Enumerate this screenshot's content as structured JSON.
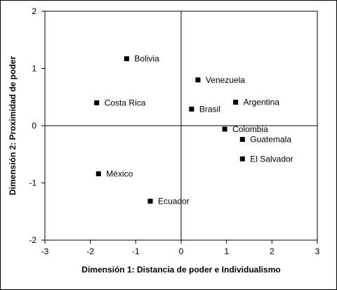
{
  "chart_data": {
    "type": "scatter",
    "xlabel": "Dimensión 1: Distancia de poder e Individualismo",
    "ylabel": "Dimensión 2: Proximidad de poder",
    "xlim": [
      -3,
      3
    ],
    "ylim": [
      -2,
      2
    ],
    "x_ticks": [
      "-3",
      "-2",
      "-1",
      "0",
      "1",
      "2",
      "3"
    ],
    "y_ticks": [
      "2",
      "1",
      "0",
      "-1",
      "-2"
    ],
    "grid": false,
    "reference_lines": {
      "x": 0,
      "y": 0
    },
    "points": [
      {
        "label": "Bolivia",
        "x": -1.2,
        "y": 1.17
      },
      {
        "label": "Venezuela",
        "x": 0.37,
        "y": 0.8
      },
      {
        "label": "Costa Rica",
        "x": -1.86,
        "y": 0.4
      },
      {
        "label": "Argentina",
        "x": 1.2,
        "y": 0.41
      },
      {
        "label": "Brasil",
        "x": 0.23,
        "y": 0.29
      },
      {
        "label": "Colombia",
        "x": 0.96,
        "y": -0.06
      },
      {
        "label": "Guatemala",
        "x": 1.35,
        "y": -0.24
      },
      {
        "label": "El Salvador",
        "x": 1.35,
        "y": -0.58
      },
      {
        "label": "México",
        "x": -1.82,
        "y": -0.84
      },
      {
        "label": "Ecuador",
        "x": -0.68,
        "y": -1.32
      }
    ]
  }
}
